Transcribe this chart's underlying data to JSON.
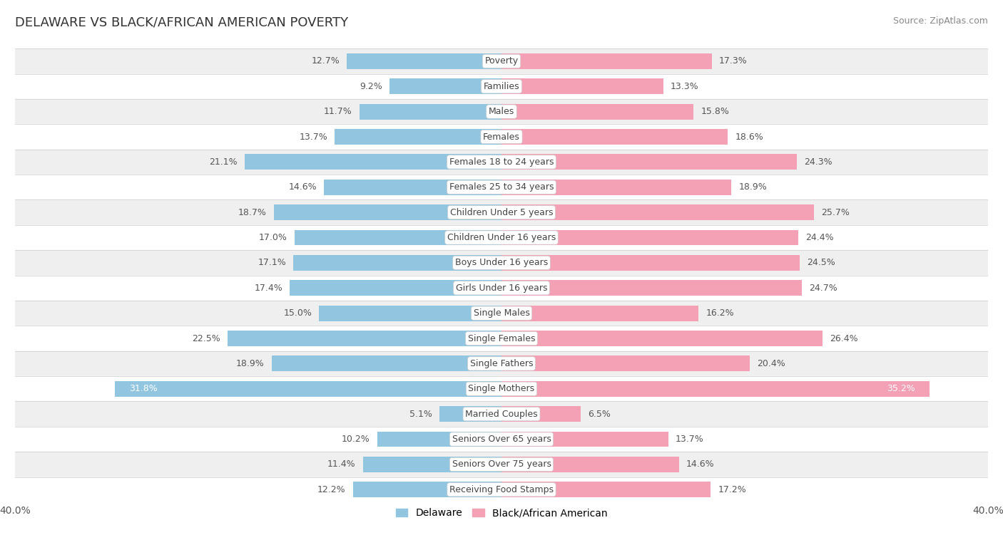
{
  "title": "DELAWARE VS BLACK/AFRICAN AMERICAN POVERTY",
  "source": "Source: ZipAtlas.com",
  "categories": [
    "Poverty",
    "Families",
    "Males",
    "Females",
    "Females 18 to 24 years",
    "Females 25 to 34 years",
    "Children Under 5 years",
    "Children Under 16 years",
    "Boys Under 16 years",
    "Girls Under 16 years",
    "Single Males",
    "Single Females",
    "Single Fathers",
    "Single Mothers",
    "Married Couples",
    "Seniors Over 65 years",
    "Seniors Over 75 years",
    "Receiving Food Stamps"
  ],
  "delaware_values": [
    12.7,
    9.2,
    11.7,
    13.7,
    21.1,
    14.6,
    18.7,
    17.0,
    17.1,
    17.4,
    15.0,
    22.5,
    18.9,
    31.8,
    5.1,
    10.2,
    11.4,
    12.2
  ],
  "baa_values": [
    17.3,
    13.3,
    15.8,
    18.6,
    24.3,
    18.9,
    25.7,
    24.4,
    24.5,
    24.7,
    16.2,
    26.4,
    20.4,
    35.2,
    6.5,
    13.7,
    14.6,
    17.2
  ],
  "delaware_color": "#92C6E0",
  "baa_color": "#F4A0B5",
  "label_color_dark": "#555555",
  "label_color_white": "#ffffff",
  "axis_max": 40.0,
  "background_row_light": "#efefef",
  "background_row_white": "#ffffff",
  "bar_height": 0.62,
  "legend_delaware": "Delaware",
  "legend_baa": "Black/African American",
  "white_label_threshold_del": 27.0,
  "white_label_threshold_baa": 30.0
}
